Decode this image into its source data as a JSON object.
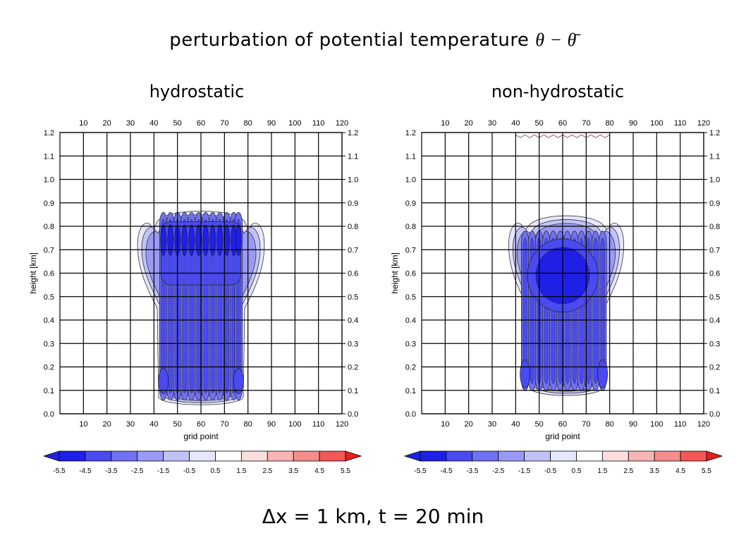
{
  "title": {
    "text": "perturbation of potential temperature",
    "math": "θ − θ̄"
  },
  "footer": {
    "text": "Δx = 1 km, t = 20 min"
  },
  "colors": {
    "neg_strong": "#1f1fe6",
    "neutral": "#ffffff",
    "pos_strong": "#e61f1f",
    "grid": "#000000"
  },
  "chart_data": [
    {
      "type": "heatmap",
      "title": "hydrostatic",
      "xlabel": "grid point",
      "ylabel": "height [km]",
      "xlim": [
        0,
        120
      ],
      "ylim": [
        0.0,
        1.2
      ],
      "xticks": [
        10,
        20,
        30,
        40,
        50,
        60,
        70,
        80,
        90,
        100,
        110,
        120
      ],
      "yticks": [
        0.0,
        0.1,
        0.2,
        0.3,
        0.4,
        0.5,
        0.6,
        0.7,
        0.8,
        0.9,
        1.0,
        1.1,
        1.2
      ],
      "grid": true,
      "colorbar": {
        "levels": [
          -5.5,
          -4.5,
          -3.5,
          -2.5,
          -1.5,
          -0.5,
          0.5,
          1.5,
          2.5,
          3.5,
          4.5,
          5.5
        ],
        "colors": [
          "#1f1fe6",
          "#4a4af0",
          "#7171f3",
          "#9a9af6",
          "#c2c2f9",
          "#e6e6fc",
          "#ffffff",
          "#fcdede",
          "#f9b5b5",
          "#f68d8d",
          "#f35858",
          "#e61f1f"
        ]
      },
      "field": {
        "center_x": 60,
        "columns": [
          44,
          47,
          50,
          53,
          56,
          59,
          62,
          65,
          68,
          71,
          74,
          76
        ],
        "outer_x": [
          33,
          87
        ],
        "top_km": 0.88,
        "bottom_km": 0.07,
        "core_band_km": [
          0.55,
          0.82
        ],
        "min_value": -4.5
      }
    },
    {
      "type": "heatmap",
      "title": "non-hydrostatic",
      "xlabel": "grid point",
      "ylabel": "height [km]",
      "xlim": [
        0,
        120
      ],
      "ylim": [
        0.0,
        1.2
      ],
      "xticks": [
        10,
        20,
        30,
        40,
        50,
        60,
        70,
        80,
        90,
        100,
        110,
        120
      ],
      "yticks": [
        0.0,
        0.1,
        0.2,
        0.3,
        0.4,
        0.5,
        0.6,
        0.7,
        0.8,
        0.9,
        1.0,
        1.1,
        1.2
      ],
      "grid": true,
      "colorbar": {
        "levels": [
          -5.5,
          -4.5,
          -3.5,
          -2.5,
          -1.5,
          -0.5,
          0.5,
          1.5,
          2.5,
          3.5,
          4.5,
          5.5
        ],
        "colors": [
          "#1f1fe6",
          "#4a4af0",
          "#7171f3",
          "#9a9af6",
          "#c2c2f9",
          "#e6e6fc",
          "#ffffff",
          "#fcdede",
          "#f9b5b5",
          "#f68d8d",
          "#f35858",
          "#e61f1f"
        ]
      },
      "field": {
        "center_x": 60,
        "columns": [
          44,
          47,
          50,
          53,
          56,
          59,
          62,
          65,
          68,
          71,
          74,
          77
        ],
        "outer_x": [
          37,
          86
        ],
        "top_km": 0.86,
        "bottom_km": 0.11,
        "core_center_km": 0.59,
        "core_x": [
          48,
          70
        ],
        "min_value": -5.0,
        "top_ripple_km": 1.19
      }
    }
  ]
}
